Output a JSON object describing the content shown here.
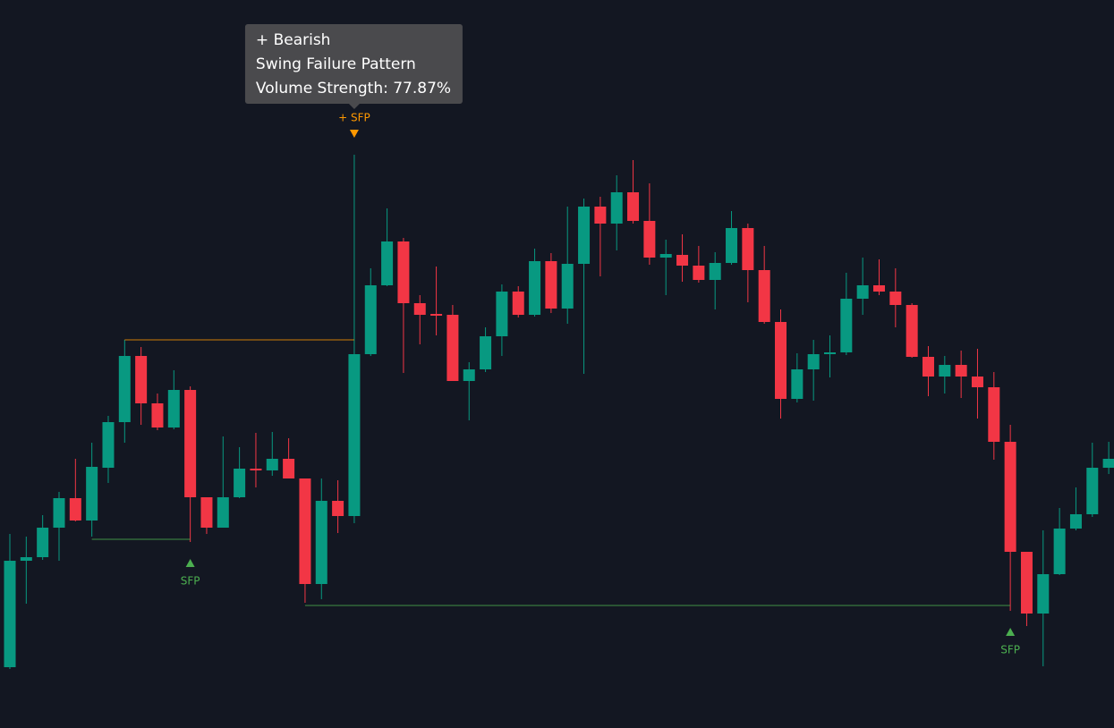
{
  "chart_data": {
    "type": "candlestick",
    "categories": [
      null,
      null,
      null,
      null,
      null,
      null,
      null,
      null,
      null,
      null,
      null,
      null,
      null,
      null,
      null,
      null,
      null,
      null,
      null,
      null,
      null,
      null,
      null,
      null,
      null,
      null,
      null,
      null,
      null,
      null,
      null,
      null,
      null,
      null,
      null,
      null,
      null,
      null,
      null,
      null,
      null,
      null,
      null,
      null,
      null,
      null,
      null,
      null,
      null,
      null,
      null,
      null,
      null,
      null,
      null,
      null,
      null,
      null,
      null,
      null,
      null,
      null,
      null,
      null,
      null,
      null,
      null,
      null
    ],
    "open": [
      68,
      187,
      191,
      224,
      257,
      232,
      291,
      342,
      416,
      363,
      336,
      378,
      258,
      224,
      258,
      290,
      288,
      301,
      279,
      161,
      254,
      237,
      418,
      495,
      544,
      475,
      463,
      462,
      388,
      401,
      438,
      488,
      462,
      522,
      469,
      519,
      583,
      564,
      599,
      567,
      526,
      529,
      517,
      501,
      520,
      559,
      512,
      454,
      368,
      401,
      418,
      420,
      480,
      495,
      488,
      473,
      415,
      393,
      406,
      393,
      381,
      320,
      197,
      128,
      172,
      223,
      239,
      291
    ],
    "high": [
      217,
      214,
      238,
      264,
      301,
      319,
      349,
      434,
      426,
      374,
      400,
      382,
      258,
      326,
      314,
      330,
      331,
      324,
      279,
      279,
      277,
      641,
      514,
      581,
      548,
      484,
      516,
      473,
      409,
      448,
      496,
      494,
      536,
      531,
      583,
      592,
      594,
      618,
      635,
      609,
      546,
      552,
      539,
      532,
      578,
      564,
      539,
      468,
      419,
      434,
      439,
      509,
      526,
      524,
      514,
      475,
      427,
      416,
      422,
      424,
      398,
      339,
      197,
      221,
      246,
      269,
      319,
      320
    ],
    "low": [
      66,
      139,
      188,
      187,
      231,
      214,
      274,
      319,
      339,
      333,
      334,
      208,
      217,
      224,
      257,
      269,
      282,
      279,
      140,
      144,
      218,
      229,
      416,
      494,
      397,
      429,
      439,
      388,
      344,
      398,
      416,
      459,
      460,
      464,
      452,
      396,
      505,
      534,
      564,
      518,
      484,
      499,
      498,
      468,
      518,
      476,
      452,
      346,
      364,
      366,
      392,
      417,
      462,
      484,
      448,
      414,
      371,
      374,
      369,
      346,
      300,
      131,
      114,
      69,
      171,
      221,
      236,
      284
    ],
    "close": [
      187,
      191,
      224,
      257,
      232,
      292,
      342,
      416,
      363,
      336,
      378,
      258,
      224,
      258,
      290,
      288,
      301,
      279,
      161,
      254,
      237,
      418,
      495,
      544,
      475,
      462,
      461,
      388,
      401,
      438,
      488,
      462,
      522,
      469,
      519,
      583,
      564,
      599,
      567,
      526,
      530,
      517,
      501,
      520,
      559,
      512,
      454,
      368,
      401,
      418,
      420,
      480,
      495,
      488,
      473,
      415,
      393,
      406,
      393,
      381,
      320,
      197,
      128,
      172,
      223,
      239,
      291,
      301
    ],
    "up_color": "#089981",
    "down_color": "#f23645",
    "ylim": [
      0,
      814
    ],
    "annotations": [
      {
        "label": "SFP",
        "kind": "bullish",
        "color": "#4caf50",
        "start": 5,
        "end": 11,
        "level": 211
      },
      {
        "label": "+ SFP",
        "kind": "bearish",
        "color": "#ff9800",
        "start": 7,
        "end": 21,
        "level": 434,
        "tooltip": [
          "+ Bearish",
          "Swing Failure Pattern",
          "Volume Strength: 77.87%"
        ]
      },
      {
        "label": "SFP",
        "kind": "bullish",
        "color": "#4caf50",
        "start": 18,
        "end": 61,
        "level": 137
      }
    ]
  }
}
